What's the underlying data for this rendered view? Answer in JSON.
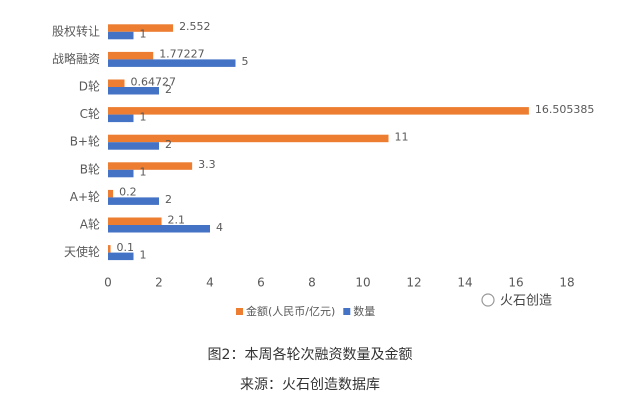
{
  "chart_data": {
    "type": "hbar",
    "categories": [
      "股权转让",
      "战略融资",
      "D轮",
      "C轮",
      "B+轮",
      "B轮",
      "A+轮",
      "A轮",
      "天使轮"
    ],
    "series": [
      {
        "name": "金额(人民币/亿元)",
        "color": "#ed7d31",
        "values": [
          2.552,
          1.77227,
          0.64727,
          16.505385,
          11,
          3.3,
          0.2,
          2.1,
          0.1
        ]
      },
      {
        "name": "数量",
        "color": "#4472c4",
        "values": [
          1,
          5,
          2,
          1,
          2,
          1,
          2,
          4,
          1
        ]
      }
    ],
    "xlim": [
      0,
      18
    ],
    "xticks": [
      0,
      2,
      4,
      6,
      8,
      10,
      12,
      14,
      16,
      18
    ],
    "legend": "bottom",
    "watermark": "火石创造",
    "caption": "图2：本周各轮次融资数量及金额",
    "source": "来源：火石创造数据库"
  }
}
